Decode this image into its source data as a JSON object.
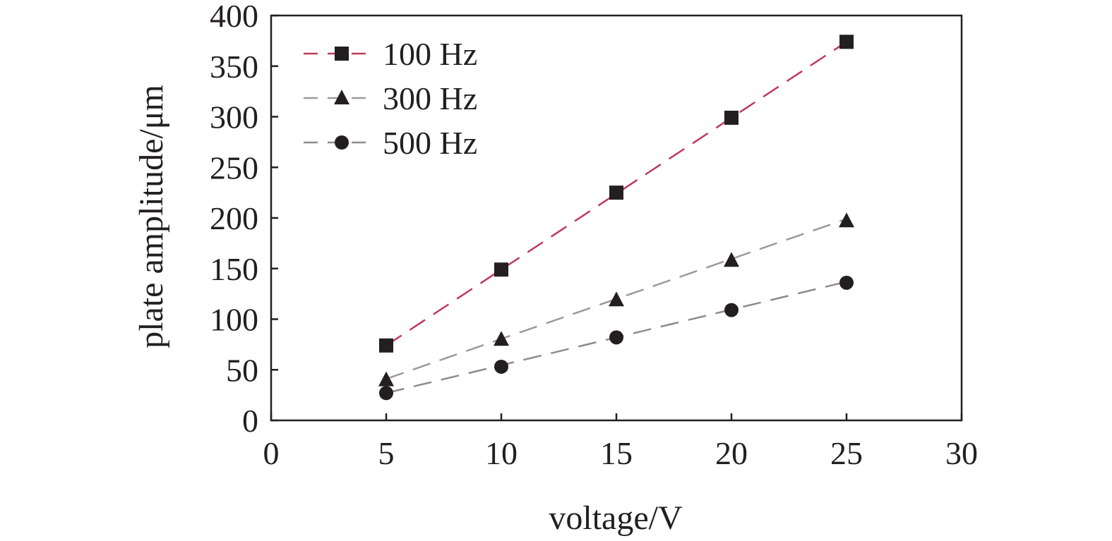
{
  "chart_data": {
    "type": "scatter",
    "xlabel": "voltage/V",
    "ylabel": "plate amplitude/μm",
    "xlim": [
      0,
      30
    ],
    "ylim": [
      0,
      400
    ],
    "xticks": [
      0,
      5,
      10,
      15,
      20,
      25,
      30
    ],
    "yticks": [
      0,
      50,
      100,
      150,
      200,
      250,
      300,
      350,
      400
    ],
    "legend_position": "top-left",
    "x": [
      5,
      10,
      15,
      20,
      25
    ],
    "series": [
      {
        "name": "100 Hz",
        "marker": "square",
        "values": [
          74,
          149,
          225,
          299,
          374
        ],
        "fit": {
          "x0": 5,
          "y0": 74,
          "x1": 25,
          "y1": 374
        },
        "line_color": "#c0395a"
      },
      {
        "name": "300 Hz",
        "marker": "triangle",
        "values": [
          40,
          80,
          119,
          158,
          197
        ],
        "fit": {
          "x0": 5,
          "y0": 41,
          "x1": 25,
          "y1": 199
        },
        "line_color": "#9a9a9a"
      },
      {
        "name": "500 Hz",
        "marker": "circle",
        "values": [
          27,
          53,
          82,
          109,
          136
        ],
        "fit": {
          "x0": 5,
          "y0": 27,
          "x1": 25,
          "y1": 137
        },
        "line_color": "#8c8c8c"
      }
    ],
    "marker_color": "#231f20",
    "axis_color": "#231f20"
  }
}
